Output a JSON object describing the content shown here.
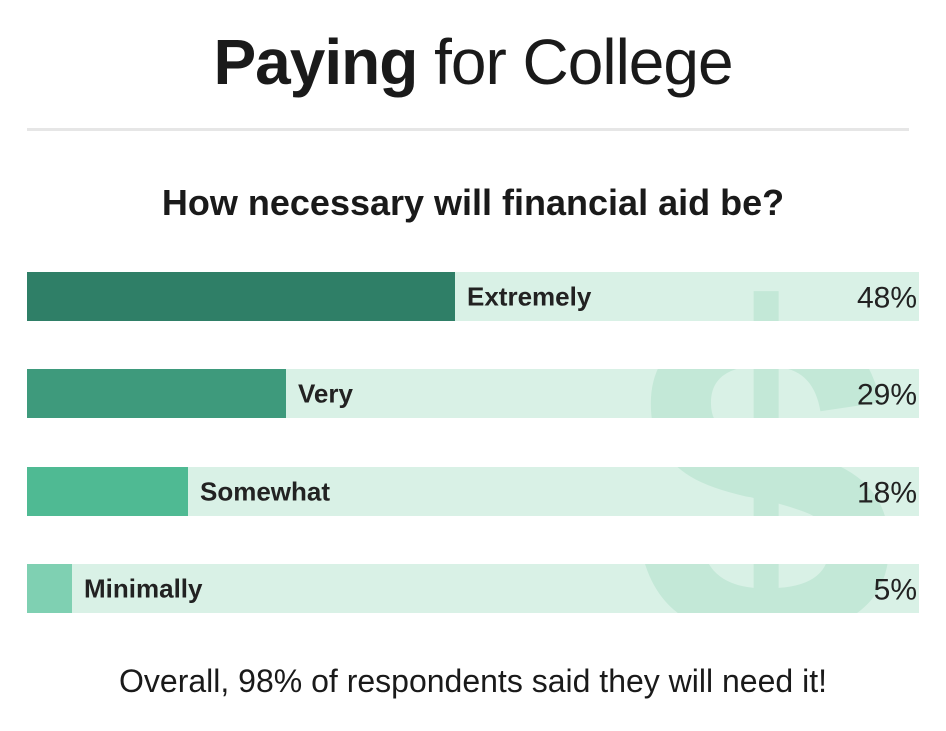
{
  "header": {
    "title_bold": "Paying",
    "title_rest": "for College",
    "subtitle": "How necessary will financial aid be?"
  },
  "footnote": "Overall, 98% of respondents said they will need it!",
  "colors": {
    "track": "#d9f1e6",
    "watermark": "#c3e8d7",
    "bars": [
      "#2f7f67",
      "#3e9a7c",
      "#4fba93",
      "#7fd0b2"
    ]
  },
  "chart_data": {
    "type": "bar",
    "orientation": "horizontal",
    "categories": [
      "Extremely",
      "Very",
      "Somewhat",
      "Minimally"
    ],
    "values": [
      48,
      29,
      18,
      5
    ],
    "value_labels": [
      "48%",
      "29%",
      "18%",
      "5%"
    ],
    "unit": "%",
    "xlim": [
      0,
      100
    ],
    "title": "How necessary will financial aid be?",
    "xlabel": "",
    "ylabel": "",
    "grid": false,
    "legend": "none"
  }
}
